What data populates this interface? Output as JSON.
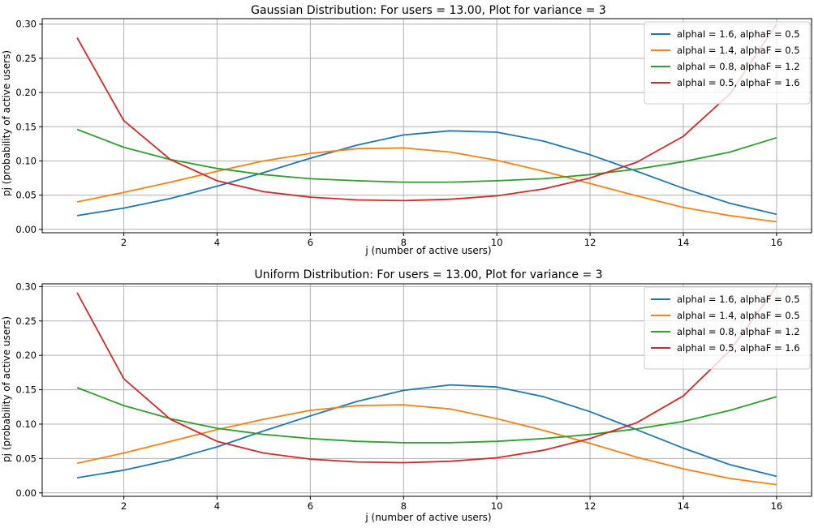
{
  "chart_data": [
    {
      "type": "line",
      "title": "Gaussian Distribution: For users = 13.00, Plot for variance = 3",
      "xlabel": "j (number of active users)",
      "ylabel": "pj (probability of active users)",
      "xlim": [
        0.25,
        16.75
      ],
      "ylim": [
        -0.005,
        0.308
      ],
      "xticks": [
        2,
        4,
        6,
        8,
        10,
        12,
        14,
        16
      ],
      "yticks": [
        0.0,
        0.05,
        0.1,
        0.15,
        0.2,
        0.25,
        0.3
      ],
      "grid": true,
      "legend_position": "top-right",
      "x": [
        1,
        2,
        3,
        4,
        5,
        6,
        7,
        8,
        9,
        10,
        11,
        12,
        13,
        14,
        15,
        16
      ],
      "series": [
        {
          "name": "alphaI = 1.6, alphaF = 0.5",
          "color": "#1f77b4",
          "values": [
            0.02,
            0.031,
            0.045,
            0.063,
            0.083,
            0.104,
            0.123,
            0.138,
            0.144,
            0.142,
            0.129,
            0.109,
            0.085,
            0.06,
            0.038,
            0.022
          ]
        },
        {
          "name": "alphaI = 1.4, alphaF = 0.5",
          "color": "#ff7f0e",
          "values": [
            0.04,
            0.054,
            0.069,
            0.085,
            0.1,
            0.111,
            0.118,
            0.119,
            0.113,
            0.101,
            0.085,
            0.067,
            0.049,
            0.032,
            0.02,
            0.011
          ]
        },
        {
          "name": "alphaI = 0.8, alphaF = 1.2",
          "color": "#2ca02c",
          "values": [
            0.146,
            0.12,
            0.102,
            0.089,
            0.08,
            0.074,
            0.071,
            0.069,
            0.069,
            0.071,
            0.074,
            0.08,
            0.088,
            0.099,
            0.113,
            0.134
          ]
        },
        {
          "name": "alphaI = 0.5, alphaF = 1.6",
          "color": "#d62728",
          "values": [
            0.28,
            0.159,
            0.102,
            0.071,
            0.055,
            0.047,
            0.043,
            0.042,
            0.044,
            0.049,
            0.059,
            0.075,
            0.098,
            0.136,
            0.198,
            0.3
          ]
        }
      ]
    },
    {
      "type": "line",
      "title": "Uniform Distribution: For users = 13.00, Plot for variance = 3",
      "xlabel": "j (number of active users)",
      "ylabel": "pj (probability of active users)",
      "xlim": [
        0.25,
        16.75
      ],
      "ylim": [
        -0.005,
        0.304
      ],
      "xticks": [
        2,
        4,
        6,
        8,
        10,
        12,
        14,
        16
      ],
      "yticks": [
        0.0,
        0.05,
        0.1,
        0.15,
        0.2,
        0.25,
        0.3
      ],
      "grid": true,
      "legend_position": "top-right",
      "x": [
        1,
        2,
        3,
        4,
        5,
        6,
        7,
        8,
        9,
        10,
        11,
        12,
        13,
        14,
        15,
        16
      ],
      "series": [
        {
          "name": "alphaI = 1.6, alphaF = 0.5",
          "color": "#1f77b4",
          "values": [
            0.022,
            0.033,
            0.048,
            0.067,
            0.09,
            0.112,
            0.133,
            0.149,
            0.157,
            0.154,
            0.14,
            0.118,
            0.092,
            0.065,
            0.041,
            0.024
          ]
        },
        {
          "name": "alphaI = 1.4, alphaF = 0.5",
          "color": "#ff7f0e",
          "values": [
            0.043,
            0.058,
            0.075,
            0.092,
            0.107,
            0.12,
            0.127,
            0.128,
            0.122,
            0.108,
            0.091,
            0.072,
            0.052,
            0.035,
            0.021,
            0.012
          ]
        },
        {
          "name": "alphaI = 0.8, alphaF = 1.2",
          "color": "#2ca02c",
          "values": [
            0.153,
            0.127,
            0.108,
            0.094,
            0.085,
            0.079,
            0.075,
            0.073,
            0.073,
            0.075,
            0.079,
            0.085,
            0.093,
            0.104,
            0.12,
            0.14
          ]
        },
        {
          "name": "alphaI = 0.5, alphaF = 1.6",
          "color": "#d62728",
          "values": [
            0.291,
            0.166,
            0.107,
            0.075,
            0.058,
            0.049,
            0.045,
            0.044,
            0.046,
            0.051,
            0.062,
            0.079,
            0.102,
            0.141,
            0.207,
            0.3
          ]
        }
      ]
    }
  ]
}
